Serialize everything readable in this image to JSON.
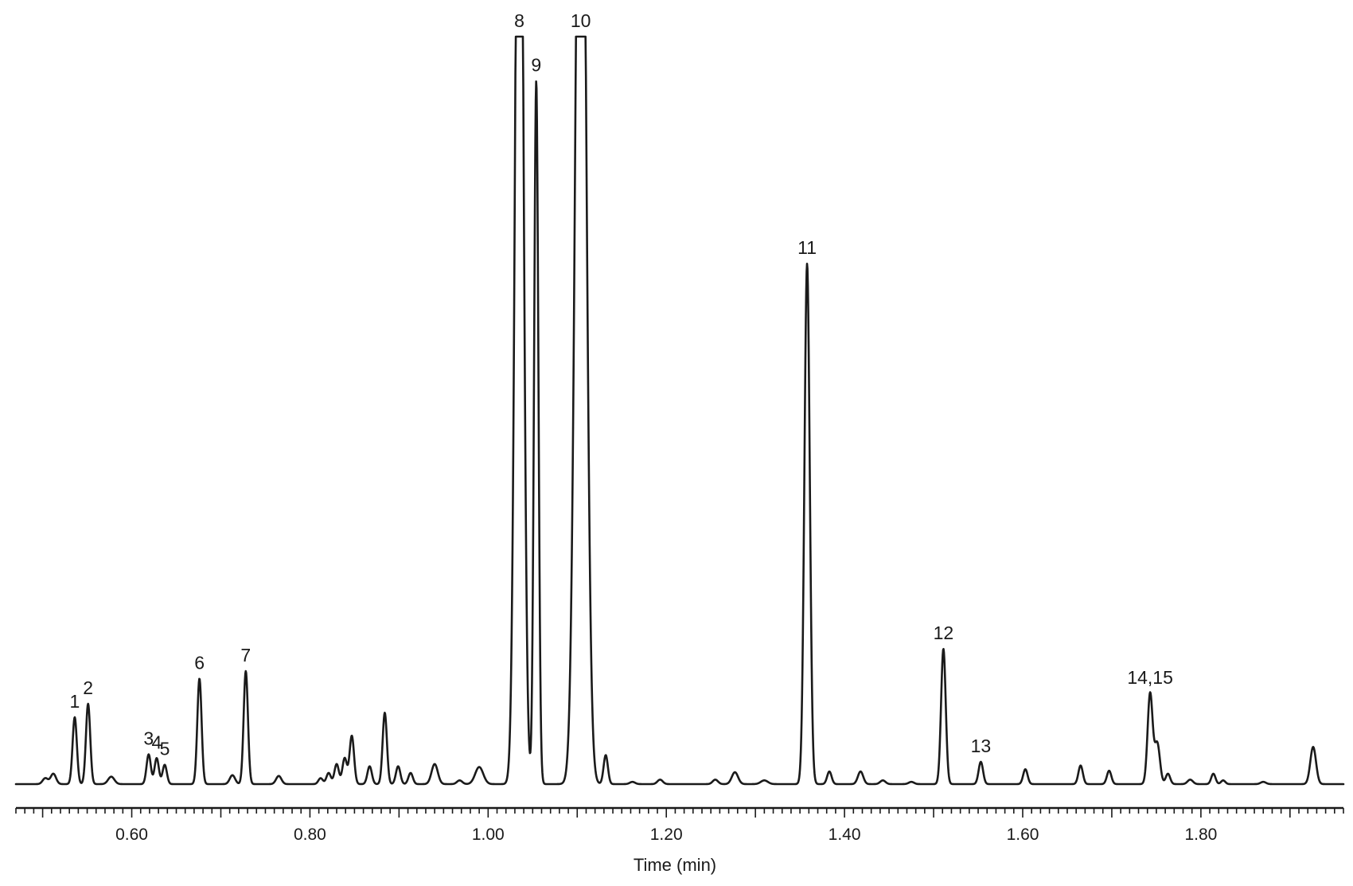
{
  "chart_data": {
    "type": "line",
    "title": "",
    "xlabel": "Time (min)",
    "ylabel": "",
    "xlim": [
      0.47,
      1.96
    ],
    "ylim": [
      0,
      100
    ],
    "x_ticks": [
      0.6,
      0.8,
      1.0,
      1.2,
      1.4,
      1.6,
      1.8
    ],
    "x_tick_labels": [
      "0.60",
      "0.80",
      "1.00",
      "1.20",
      "1.40",
      "1.60",
      "1.80"
    ],
    "grid": false,
    "line_color": "#1a1a1a",
    "peaks": [
      {
        "label": "",
        "x": 0.503,
        "y": 0.8,
        "width": 0.003
      },
      {
        "label": "",
        "x": 0.512,
        "y": 1.4,
        "width": 0.003
      },
      {
        "label": "1",
        "x": 0.536,
        "y": 9.0,
        "width": 0.0024
      },
      {
        "label": "2",
        "x": 0.551,
        "y": 10.8,
        "width": 0.0024
      },
      {
        "label": "",
        "x": 0.577,
        "y": 1.0,
        "width": 0.0035
      },
      {
        "label": "3",
        "x": 0.619,
        "y": 4.0,
        "width": 0.0024
      },
      {
        "label": "4",
        "x": 0.628,
        "y": 3.5,
        "width": 0.0024
      },
      {
        "label": "5",
        "x": 0.637,
        "y": 2.6,
        "width": 0.0024
      },
      {
        "label": "6",
        "x": 0.676,
        "y": 14.2,
        "width": 0.0024
      },
      {
        "label": "",
        "x": 0.713,
        "y": 1.2,
        "width": 0.003
      },
      {
        "label": "7",
        "x": 0.728,
        "y": 15.2,
        "width": 0.0024
      },
      {
        "label": "",
        "x": 0.765,
        "y": 1.1,
        "width": 0.003
      },
      {
        "label": "",
        "x": 0.812,
        "y": 0.8,
        "width": 0.0025
      },
      {
        "label": "",
        "x": 0.821,
        "y": 1.5,
        "width": 0.0025
      },
      {
        "label": "",
        "x": 0.83,
        "y": 2.7,
        "width": 0.0025
      },
      {
        "label": "",
        "x": 0.839,
        "y": 3.5,
        "width": 0.0025
      },
      {
        "label": "",
        "x": 0.847,
        "y": 6.5,
        "width": 0.0025
      },
      {
        "label": "",
        "x": 0.867,
        "y": 2.4,
        "width": 0.0025
      },
      {
        "label": "",
        "x": 0.884,
        "y": 9.6,
        "width": 0.0024
      },
      {
        "label": "",
        "x": 0.899,
        "y": 2.4,
        "width": 0.0025
      },
      {
        "label": "",
        "x": 0.913,
        "y": 1.5,
        "width": 0.0025
      },
      {
        "label": "",
        "x": 0.94,
        "y": 2.7,
        "width": 0.0035
      },
      {
        "label": "",
        "x": 0.968,
        "y": 0.5,
        "width": 0.003
      },
      {
        "label": "",
        "x": 0.99,
        "y": 2.3,
        "width": 0.0045
      },
      {
        "label": "8",
        "x": 1.035,
        "y": 165,
        "width": 0.0042
      },
      {
        "label": "9",
        "x": 1.054,
        "y": 94.6,
        "width": 0.0024
      },
      {
        "label": "10",
        "x": 1.104,
        "y": 165,
        "width": 0.0055
      },
      {
        "label": "",
        "x": 1.132,
        "y": 3.9,
        "width": 0.0024
      },
      {
        "label": "",
        "x": 1.162,
        "y": 0.3,
        "width": 0.003
      },
      {
        "label": "",
        "x": 1.193,
        "y": 0.6,
        "width": 0.003
      },
      {
        "label": "",
        "x": 1.255,
        "y": 0.6,
        "width": 0.003
      },
      {
        "label": "",
        "x": 1.277,
        "y": 1.6,
        "width": 0.0035
      },
      {
        "label": "",
        "x": 1.31,
        "y": 0.5,
        "width": 0.004
      },
      {
        "label": "11",
        "x": 1.358,
        "y": 70.0,
        "width": 0.003
      },
      {
        "label": "",
        "x": 1.383,
        "y": 1.7,
        "width": 0.0025
      },
      {
        "label": "",
        "x": 1.418,
        "y": 1.7,
        "width": 0.003
      },
      {
        "label": "",
        "x": 1.443,
        "y": 0.5,
        "width": 0.003
      },
      {
        "label": "",
        "x": 1.475,
        "y": 0.3,
        "width": 0.003
      },
      {
        "label": "12",
        "x": 1.511,
        "y": 18.2,
        "width": 0.0026
      },
      {
        "label": "13",
        "x": 1.553,
        "y": 3.0,
        "width": 0.0025
      },
      {
        "label": "",
        "x": 1.603,
        "y": 2.0,
        "width": 0.0025
      },
      {
        "label": "",
        "x": 1.665,
        "y": 2.5,
        "width": 0.0025
      },
      {
        "label": "",
        "x": 1.697,
        "y": 1.8,
        "width": 0.0025
      },
      {
        "label": "14,15",
        "x": 1.743,
        "y": 12.2,
        "width": 0.0028
      },
      {
        "label": "",
        "x": 1.751,
        "y": 5.5,
        "width": 0.003
      },
      {
        "label": "",
        "x": 1.763,
        "y": 1.4,
        "width": 0.0025
      },
      {
        "label": "",
        "x": 1.788,
        "y": 0.6,
        "width": 0.003
      },
      {
        "label": "",
        "x": 1.814,
        "y": 1.4,
        "width": 0.0024
      },
      {
        "label": "",
        "x": 1.825,
        "y": 0.5,
        "width": 0.0024
      },
      {
        "label": "",
        "x": 1.87,
        "y": 0.3,
        "width": 0.003
      },
      {
        "label": "",
        "x": 1.926,
        "y": 5.0,
        "width": 0.0032
      }
    ]
  }
}
